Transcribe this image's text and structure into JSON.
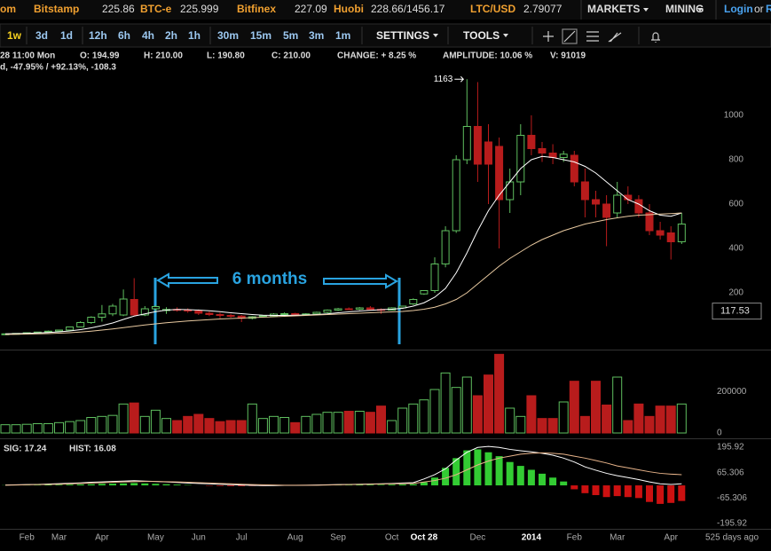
{
  "header": {
    "brand": "om",
    "tickers": [
      {
        "exchange": "Bitstamp",
        "price": "225.86"
      },
      {
        "exchange": "BTC-e",
        "price": "225.999"
      },
      {
        "exchange": "Bitfinex",
        "price": "227.09"
      },
      {
        "exchange": "Huobi",
        "price": "228.66/1456.17"
      },
      {
        "exchange": "LTC/USD",
        "price": "2.79077"
      }
    ],
    "markets": "MARKETS",
    "mining": "MINING",
    "login": "Login",
    "or": "or",
    "register": "R"
  },
  "toolbar": {
    "periods": [
      "1w",
      "3d",
      "1d",
      "12h",
      "6h",
      "4h",
      "2h",
      "1h",
      "30m",
      "15m",
      "5m",
      "3m",
      "1m"
    ],
    "settings": "SETTINGS",
    "tools": "TOOLS"
  },
  "info": {
    "time": "28 11:00 Mon",
    "open": "O: 194.99",
    "high": "H: 210.00",
    "low": "L: 190.80",
    "close": "C: 210.00",
    "change": "CHANGE: + 8.25 %",
    "amplitude": "AMPLITUDE: 10.06 %",
    "volume": "V: 91019",
    "line2": "d, -47.95% / +92.13%, -108.3"
  },
  "chart_data": [
    {
      "type": "candlestick",
      "categories": [
        null,
        null,
        "Feb",
        null,
        null,
        "Mar",
        null,
        null,
        null,
        "Apr",
        null,
        null,
        null,
        null,
        "May",
        null,
        null,
        null,
        "Jun",
        null,
        null,
        null,
        "Jul",
        null,
        null,
        null,
        null,
        "Aug",
        null,
        null,
        null,
        "Sep",
        null,
        null,
        null,
        null,
        "Oct",
        null,
        null,
        "Oct 28",
        null,
        null,
        null,
        null,
        "Dec",
        null,
        null,
        null,
        null,
        "2014",
        null,
        null,
        null,
        "Feb",
        null,
        null,
        null,
        "Mar",
        null,
        null,
        null,
        null,
        "Apr",
        null
      ],
      "open": [
        14,
        15,
        17,
        20,
        23,
        27,
        32,
        46,
        66,
        90,
        105,
        100,
        170,
        100,
        128,
        120,
        125,
        122,
        118,
        108,
        102,
        98,
        95,
        85,
        92,
        96,
        104,
        106,
        102,
        105,
        112,
        122,
        128,
        126,
        132,
        125,
        122,
        132,
        150,
        194.99,
        210,
        330,
        480,
        800,
        950,
        880,
        860,
        620,
        700,
        910,
        850,
        830,
        810,
        820,
        700,
        620,
        600,
        560,
        640,
        620,
        560,
        480,
        470,
        430
      ],
      "high": [
        16,
        18,
        22,
        24,
        30,
        34,
        48,
        72,
        94,
        145,
        150,
        215,
        266,
        140,
        145,
        135,
        135,
        130,
        125,
        115,
        110,
        105,
        100,
        95,
        100,
        108,
        112,
        110,
        108,
        115,
        125,
        132,
        134,
        136,
        140,
        130,
        135,
        142,
        175,
        210,
        360,
        500,
        820,
        1163,
        1150,
        960,
        900,
        760,
        960,
        1000,
        880,
        870,
        840,
        840,
        760,
        660,
        640,
        700,
        680,
        640,
        600,
        520,
        500,
        560
      ],
      "low": [
        13,
        14,
        16,
        19,
        22,
        25,
        30,
        44,
        60,
        70,
        95,
        95,
        95,
        95,
        115,
        105,
        115,
        110,
        100,
        95,
        85,
        88,
        68,
        80,
        88,
        94,
        100,
        99,
        98,
        102,
        108,
        118,
        122,
        122,
        120,
        105,
        120,
        128,
        145,
        190.8,
        200,
        315,
        470,
        780,
        700,
        600,
        400,
        560,
        640,
        820,
        790,
        780,
        790,
        680,
        540,
        540,
        410,
        540,
        600,
        540,
        460,
        440,
        350,
        420
      ],
      "close": [
        15,
        17,
        20,
        23,
        27,
        32,
        46,
        66,
        90,
        105,
        140,
        172,
        100,
        128,
        138,
        125,
        122,
        118,
        108,
        102,
        98,
        95,
        85,
        92,
        96,
        104,
        106,
        102,
        105,
        112,
        122,
        128,
        126,
        132,
        125,
        122,
        132,
        140,
        170,
        210,
        330,
        480,
        800,
        950,
        780,
        780,
        620,
        700,
        910,
        850,
        830,
        810,
        825,
        700,
        620,
        600,
        540,
        640,
        620,
        560,
        480,
        460,
        430,
        510
      ],
      "up_color": "#5fbf5f",
      "down_color": "#b81c1c",
      "series": [
        {
          "color": "#ffffff",
          "values": [
            15,
            16,
            17,
            19,
            21,
            24,
            28,
            34,
            42,
            52,
            64,
            80,
            95,
            105,
            115,
            122,
            125,
            124,
            122,
            119,
            115,
            110,
            106,
            102,
            99,
            98,
            98,
            99,
            100,
            102,
            105,
            110,
            114,
            118,
            121,
            124,
            126,
            130,
            140,
            155,
            180,
            220,
            290,
            380,
            480,
            570,
            640,
            700,
            760,
            800,
            815,
            810,
            800,
            790,
            770,
            740,
            700,
            660,
            620,
            600,
            570,
            550,
            545,
            560
          ]
        },
        {
          "color": "#e8c9a0",
          "values": [
            12,
            13,
            14,
            15,
            16,
            18,
            20,
            23,
            27,
            32,
            37,
            43,
            49,
            55,
            60,
            65,
            69,
            73,
            76,
            79,
            82,
            84,
            86,
            88,
            90,
            92,
            94,
            96,
            98,
            100,
            102,
            104,
            106,
            108,
            110,
            112,
            114,
            116,
            120,
            126,
            135,
            150,
            170,
            200,
            240,
            280,
            320,
            355,
            385,
            415,
            440,
            460,
            480,
            495,
            510,
            520,
            530,
            538,
            545,
            550,
            552,
            555,
            557,
            560
          ]
        }
      ],
      "ylim": [
        -52,
        1200
      ],
      "yticks": [
        200,
        400,
        600,
        800,
        1000
      ],
      "max_label": 1163,
      "crosshair_value": 117.53,
      "annotation": "6 months",
      "x_note": "525 days ago"
    },
    {
      "type": "bar",
      "values": [
        40000,
        40000,
        42000,
        45000,
        45000,
        50000,
        55000,
        60000,
        75000,
        80000,
        85000,
        140000,
        145000,
        80000,
        110000,
        70000,
        60000,
        80000,
        90000,
        70000,
        55000,
        60000,
        60000,
        140000,
        70000,
        80000,
        75000,
        50000,
        80000,
        90000,
        100000,
        100000,
        105000,
        105000,
        100000,
        130000,
        60000,
        120000,
        140000,
        160000,
        210000,
        290000,
        220000,
        270000,
        180000,
        280000,
        380000,
        120000,
        80000,
        180000,
        70000,
        70000,
        150000,
        250000,
        80000,
        250000,
        135000,
        270000,
        60000,
        140000,
        80000,
        130000,
        130000,
        140000
      ],
      "ylim": [
        0,
        390000
      ],
      "yticks": [
        0,
        200000
      ]
    },
    {
      "type": "macd",
      "series": [
        {
          "color": "#ffffff",
          "values": [
            2,
            3,
            4,
            5,
            7,
            9,
            11,
            13,
            16,
            18,
            20,
            22,
            24,
            22,
            20,
            18,
            15,
            12,
            10,
            8,
            6,
            4,
            2,
            0,
            -1,
            -1,
            0,
            0,
            1,
            2,
            3,
            4,
            5,
            6,
            7,
            8,
            10,
            12,
            14,
            33,
            55,
            85,
            130,
            170,
            195,
            200,
            195,
            185,
            178,
            172,
            165,
            155,
            140,
            120,
            95,
            78,
            62,
            50,
            40,
            30,
            18,
            8,
            5,
            8
          ]
        },
        {
          "color": "#e8b48a",
          "values": [
            1,
            2,
            3,
            4,
            5,
            6,
            8,
            10,
            12,
            14,
            16,
            18,
            19,
            20,
            20,
            19,
            18,
            16,
            14,
            12,
            10,
            8,
            6,
            4,
            3,
            2,
            1,
            1,
            1,
            1,
            2,
            3,
            4,
            5,
            6,
            7,
            8,
            9,
            10,
            17.24,
            25,
            37,
            55,
            80,
            105,
            125,
            140,
            150,
            160,
            165,
            167,
            165,
            160,
            150,
            140,
            128,
            115,
            100,
            90,
            80,
            70,
            62,
            58,
            55
          ]
        }
      ],
      "histogram": [
        1,
        1,
        2,
        2,
        3,
        3,
        4,
        5,
        6,
        8,
        9,
        10,
        12,
        10,
        8,
        6,
        4,
        2,
        0,
        -2,
        -3,
        -4,
        -4,
        -3,
        -3,
        -2,
        -1,
        -1,
        0,
        1,
        1,
        2,
        2,
        3,
        3,
        3,
        4,
        5,
        6,
        16.08,
        40,
        90,
        140,
        180,
        185,
        170,
        150,
        120,
        100,
        80,
        60,
        40,
        20,
        -20,
        -40,
        -50,
        -60,
        -55,
        -60,
        -65,
        -85,
        -95,
        -90,
        -80
      ],
      "up_color": "#33cc33",
      "down_color": "#cc1111",
      "ylim": [
        -223,
        228
      ],
      "yticks": [
        -195.92,
        -65.306,
        65.306,
        195.92
      ],
      "sig_label": "SIG: 17.24",
      "hist_label": "HIST: 16.08"
    }
  ]
}
